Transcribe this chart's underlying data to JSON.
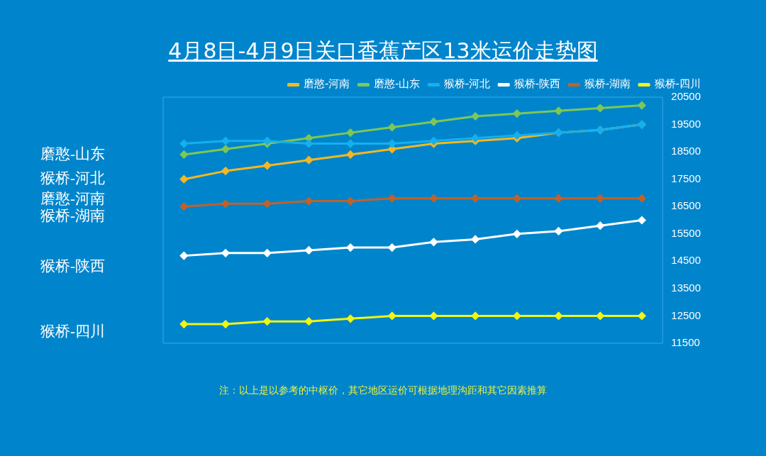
{
  "chart_data": {
    "type": "line",
    "title": "4月8日-4月9日关口香蕉产区13米运价走势图",
    "categories": [
      null,
      null,
      null,
      null,
      null,
      null,
      null,
      null,
      null,
      null,
      null,
      null
    ],
    "series": [
      {
        "name": "磨憨-河南",
        "color": "#f5b820",
        "values": [
          17500,
          17800,
          18000,
          18200,
          18400,
          18600,
          18800,
          18900,
          19000,
          19200,
          19300,
          19500
        ]
      },
      {
        "name": "磨憨-山东",
        "color": "#7dc854",
        "values": [
          18400,
          18600,
          18800,
          19000,
          19200,
          19400,
          19600,
          19800,
          19900,
          20000,
          20100,
          20200
        ]
      },
      {
        "name": "猴桥-河北",
        "color": "#14b0f0",
        "values": [
          18800,
          18900,
          18900,
          18800,
          18800,
          18800,
          18900,
          19000,
          19100,
          19200,
          19300,
          19500
        ]
      },
      {
        "name": "猴桥-陕西",
        "color": "#ffffff",
        "values": [
          14700,
          14800,
          14800,
          14900,
          15000,
          15000,
          15200,
          15300,
          15500,
          15600,
          15800,
          16000
        ]
      },
      {
        "name": "猴桥-湖南",
        "color": "#c0622a",
        "values": [
          16500,
          16600,
          16600,
          16700,
          16700,
          16800,
          16800,
          16800,
          16800,
          16800,
          16800,
          16800
        ]
      },
      {
        "name": "猴桥-四川",
        "color": "#f0f514",
        "values": [
          12200,
          12200,
          12300,
          12300,
          12400,
          12500,
          12500,
          12500,
          12500,
          12500,
          12500,
          12500
        ]
      }
    ],
    "ylim": [
      11500,
      20500
    ],
    "yticks": [
      11500,
      12500,
      13500,
      14500,
      15500,
      16500,
      17500,
      18500,
      19500,
      20500
    ],
    "grid": false,
    "legend": "top",
    "marker": "diamond",
    "line_style": "solid",
    "tick_labels": "y",
    "annotations": [
      "磨憨-山东",
      "猴桥-河北",
      "磨憨-河南",
      "猴桥-湖南",
      "猴桥-陕西",
      "猴桥-四川",
      "注：以上是以参考的中枢价，其它地区运价可根据地理沟距和其它因素推算"
    ]
  }
}
